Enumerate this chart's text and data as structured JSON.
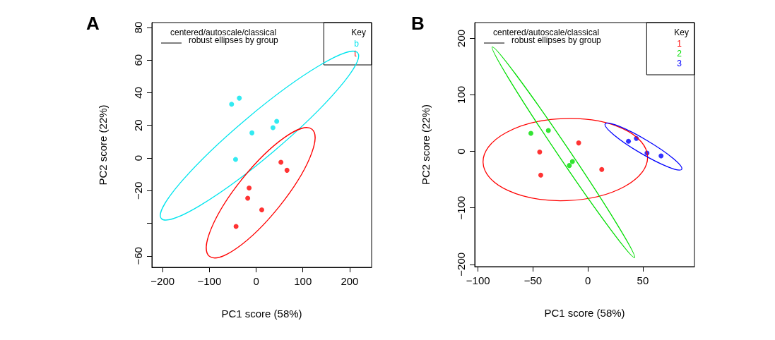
{
  "chart_data": [
    {
      "type": "scatter",
      "title": "A",
      "xlabel": "PC1 score (58%)",
      "ylabel": "PC2 score (22%)",
      "legend_title": "Key",
      "annotations": [
        "centered/autoscale/classical",
        "robust ellipses by group"
      ],
      "xlim": [
        -223,
        247
      ],
      "xticks": [
        -200,
        -100,
        0,
        100,
        200
      ],
      "ylim": [
        -67,
        83
      ],
      "yticks": [
        -60,
        {
          "value": -40,
          "label": null
        },
        -20,
        0,
        20,
        40,
        60,
        80
      ],
      "grid": false,
      "legend": "top right",
      "marker": "circle",
      "series": [
        {
          "name": "b",
          "color": "#00e5ee",
          "x": [
            -52.5,
            -36,
            -9,
            36,
            44,
            -44
          ],
          "values": [
            33,
            36.7,
            15.4,
            18.6,
            22.5,
            -0.9
          ]
        },
        {
          "name": "t",
          "color": "#ff0000",
          "x": [
            53,
            66,
            -15,
            -18,
            12,
            -43
          ],
          "values": [
            -2.6,
            -7.5,
            -18.4,
            -24.6,
            -31.8,
            -41.9
          ]
        }
      ]
    },
    {
      "type": "scatter",
      "title": "B",
      "xlabel": "PC1 score (58%)",
      "ylabel": "PC2 score (22%)",
      "legend_title": "Key",
      "annotations": [
        "centered/autoscale/classical",
        "robust ellipses by group"
      ],
      "xlim": [
        -103,
        97
      ],
      "xticks": [
        -100,
        -50,
        0,
        50
      ],
      "ylim": [
        -204,
        228
      ],
      "yticks": [
        -200,
        -100,
        0,
        100,
        200
      ],
      "grid": false,
      "legend": "top right",
      "marker": "circle",
      "series": [
        {
          "name": "1",
          "color": "#ff0000",
          "x": [
            -43.9,
            -42.9,
            -8.4,
            12.6
          ],
          "values": [
            -1,
            -42,
            15,
            -32
          ]
        },
        {
          "name": "2",
          "color": "#00dd00",
          "x": [
            -51.9,
            -36,
            -16.9,
            -14.1
          ],
          "values": [
            32,
            37,
            -25,
            -18
          ]
        },
        {
          "name": "3",
          "color": "#0000ff",
          "x": [
            36.9,
            44.1,
            53.8,
            66.6
          ],
          "values": [
            18,
            23,
            -3,
            -8
          ]
        }
      ]
    }
  ]
}
